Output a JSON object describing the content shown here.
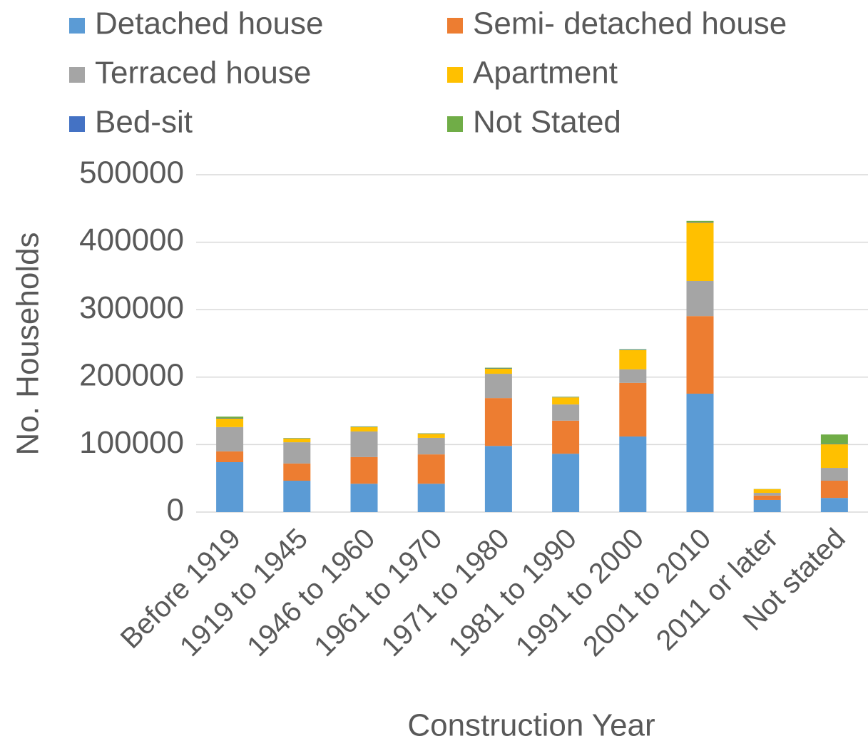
{
  "chart_data": {
    "type": "stacked_bar",
    "x_label": "Construction Year",
    "y_label": "No. Households",
    "categories": [
      "Before 1919",
      "1919 to 1945",
      "1946 to 1960",
      "1961 to 1970",
      "1971 to 1980",
      "1981 to 1990",
      "1991 to 2000",
      "2001 to 2010",
      "2011 or later",
      "Not stated"
    ],
    "series": [
      {
        "name": "Detached house",
        "color": "#5b9bd5",
        "values": [
          74000,
          46500,
          42000,
          42000,
          98000,
          86500,
          112000,
          175500,
          18000,
          21000
        ]
      },
      {
        "name": "Semi- detached house",
        "color": "#ed7d31",
        "values": [
          16000,
          25500,
          39500,
          43500,
          71000,
          49000,
          79500,
          115000,
          6500,
          25500
        ]
      },
      {
        "name": "Terraced house",
        "color": "#a5a5a5",
        "values": [
          36000,
          31500,
          38000,
          24500,
          36000,
          24000,
          20000,
          52000,
          4000,
          19000
        ]
      },
      {
        "name": "Apartment",
        "color": "#ffc000",
        "values": [
          12500,
          5500,
          6500,
          6000,
          7500,
          10500,
          28500,
          86500,
          5500,
          35000
        ]
      },
      {
        "name": "Bed-sit",
        "color": "#4472c4",
        "values": [
          500,
          300,
          300,
          300,
          500,
          300,
          500,
          700,
          100,
          500
        ]
      },
      {
        "name": "Not Stated",
        "color": "#70ad47",
        "values": [
          2500,
          500,
          700,
          500,
          1000,
          700,
          800,
          1800,
          200,
          14000
        ]
      }
    ],
    "ylim": [
      0,
      500000
    ],
    "yticks": [
      0,
      100000,
      200000,
      300000,
      400000,
      500000
    ],
    "grid": true,
    "legend": "top"
  }
}
